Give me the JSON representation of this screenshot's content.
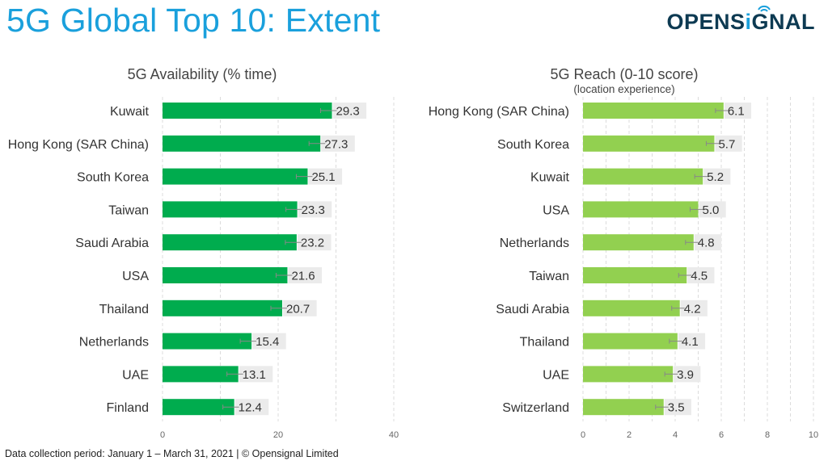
{
  "header": {
    "title": "5G Global Top 10: Extent",
    "logo_text_a": "OPENS",
    "logo_text_i": "i",
    "logo_text_b": "GNAL",
    "logo_icon": "signal-wifi-icon"
  },
  "footer": {
    "text": "Data collection period: January 1 – March 31, 2021  |  © Opensignal Limited"
  },
  "colors": {
    "title": "#1aa0dc",
    "logo": "#0d3a52",
    "availability_bar": "#00ac4e",
    "reach_bar": "#92d050",
    "label_bg": "#ebebeb"
  },
  "chart_data": [
    {
      "type": "bar",
      "orientation": "horizontal",
      "title": "5G Availability (% time)",
      "subtitle": "",
      "categories": [
        "Kuwait",
        "Hong Kong (SAR China)",
        "South Korea",
        "Taiwan",
        "Saudi Arabia",
        "USA",
        "Thailand",
        "Netherlands",
        "UAE",
        "Finland"
      ],
      "values": [
        29.3,
        27.3,
        25.1,
        23.3,
        23.2,
        21.6,
        20.7,
        15.4,
        13.1,
        12.4
      ],
      "value_labels": [
        "29.3",
        "27.3",
        "25.1",
        "23.3",
        "23.2",
        "21.6",
        "20.7",
        "15.4",
        "13.1",
        "12.4"
      ],
      "xlim": [
        0,
        40
      ],
      "xticks": [
        0,
        20,
        40
      ],
      "minor_gridlines": [
        10,
        30
      ],
      "grid": true,
      "error_bars": true,
      "xlabel": "",
      "ylabel": ""
    },
    {
      "type": "bar",
      "orientation": "horizontal",
      "title": "5G Reach (0-10 score)",
      "subtitle": "(location experience)",
      "categories": [
        "Hong Kong (SAR China)",
        "South Korea",
        "Kuwait",
        "USA",
        "Netherlands",
        "Taiwan",
        "Saudi Arabia",
        "Thailand",
        "UAE",
        "Switzerland"
      ],
      "values": [
        6.1,
        5.7,
        5.2,
        5.0,
        4.8,
        4.5,
        4.2,
        4.1,
        3.9,
        3.5
      ],
      "value_labels": [
        "6.1",
        "5.7",
        "5.2",
        "5.0",
        "4.8",
        "4.5",
        "4.2",
        "4.1",
        "3.9",
        "3.5"
      ],
      "xlim": [
        0,
        10
      ],
      "xticks": [
        0,
        2,
        4,
        6,
        8,
        10
      ],
      "minor_gridlines": [
        1,
        3,
        5,
        7,
        9
      ],
      "grid": true,
      "error_bars": true,
      "xlabel": "",
      "ylabel": ""
    }
  ]
}
